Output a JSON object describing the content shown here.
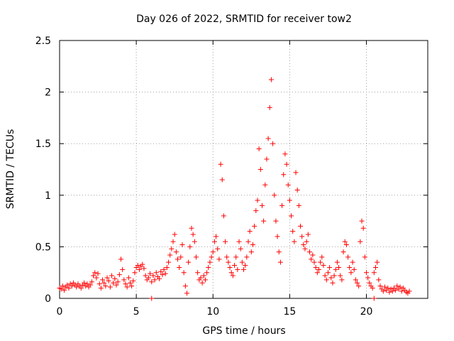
{
  "chart_data": {
    "type": "scatter",
    "title": "Day 026 of 2022, SRMTID for receiver tow2",
    "xlabel": "GPS time / hours",
    "ylabel": "SRMTID / TECUs",
    "xlim": [
      0,
      24
    ],
    "ylim": [
      0,
      2.5
    ],
    "xticks": [
      0,
      5,
      10,
      15,
      20
    ],
    "yticks": [
      0,
      0.5,
      1,
      1.5,
      2,
      2.5
    ],
    "xtick_labels": [
      "0",
      "5",
      "10",
      "15",
      "20"
    ],
    "ytick_labels": [
      "0",
      "0.5",
      "1",
      "1.5",
      "2",
      "2.5"
    ],
    "grid": true,
    "marker": "+",
    "color": "#ff0000",
    "series": [
      {
        "name": "tow2",
        "points": [
          [
            0.0,
            0.1
          ],
          [
            0.1,
            0.09
          ],
          [
            0.2,
            0.12
          ],
          [
            0.3,
            0.08
          ],
          [
            0.4,
            0.11
          ],
          [
            0.5,
            0.13
          ],
          [
            0.6,
            0.1
          ],
          [
            0.7,
            0.14
          ],
          [
            0.8,
            0.12
          ],
          [
            0.9,
            0.15
          ],
          [
            1.0,
            0.13
          ],
          [
            1.1,
            0.11
          ],
          [
            1.2,
            0.14
          ],
          [
            1.3,
            0.12
          ],
          [
            1.4,
            0.1
          ],
          [
            1.5,
            0.13
          ],
          [
            1.6,
            0.15
          ],
          [
            1.7,
            0.12
          ],
          [
            1.8,
            0.14
          ],
          [
            1.9,
            0.11
          ],
          [
            2.0,
            0.13
          ],
          [
            2.1,
            0.16
          ],
          [
            2.2,
            0.22
          ],
          [
            2.3,
            0.25
          ],
          [
            2.4,
            0.2
          ],
          [
            2.5,
            0.24
          ],
          [
            2.6,
            0.14
          ],
          [
            2.7,
            0.1
          ],
          [
            2.8,
            0.18
          ],
          [
            2.9,
            0.15
          ],
          [
            3.0,
            0.12
          ],
          [
            3.1,
            0.2
          ],
          [
            3.2,
            0.17
          ],
          [
            3.3,
            0.11
          ],
          [
            3.4,
            0.22
          ],
          [
            3.5,
            0.15
          ],
          [
            3.6,
            0.19
          ],
          [
            3.7,
            0.13
          ],
          [
            3.8,
            0.16
          ],
          [
            3.9,
            0.23
          ],
          [
            4.0,
            0.38
          ],
          [
            4.1,
            0.28
          ],
          [
            4.2,
            0.18
          ],
          [
            4.3,
            0.14
          ],
          [
            4.4,
            0.11
          ],
          [
            4.5,
            0.2
          ],
          [
            4.6,
            0.15
          ],
          [
            4.7,
            0.12
          ],
          [
            4.8,
            0.17
          ],
          [
            4.9,
            0.25
          ],
          [
            5.0,
            0.3
          ],
          [
            5.1,
            0.32
          ],
          [
            5.2,
            0.28
          ],
          [
            5.3,
            0.31
          ],
          [
            5.4,
            0.33
          ],
          [
            5.5,
            0.29
          ],
          [
            5.6,
            0.22
          ],
          [
            5.7,
            0.18
          ],
          [
            5.8,
            0.2
          ],
          [
            5.9,
            0.24
          ],
          [
            6.0,
            0.16
          ],
          [
            6.1,
            0.22
          ],
          [
            6.2,
            0.18
          ],
          [
            6.3,
            0.25
          ],
          [
            6.4,
            0.21
          ],
          [
            6.5,
            0.19
          ],
          [
            6.6,
            0.26
          ],
          [
            6.7,
            0.23
          ],
          [
            6.8,
            0.28
          ],
          [
            6.9,
            0.24
          ],
          [
            7.0,
            0.3
          ],
          [
            7.1,
            0.35
          ],
          [
            7.2,
            0.42
          ],
          [
            7.3,
            0.48
          ],
          [
            7.4,
            0.55
          ],
          [
            7.5,
            0.62
          ],
          [
            7.6,
            0.45
          ],
          [
            7.7,
            0.38
          ],
          [
            7.8,
            0.3
          ],
          [
            7.9,
            0.4
          ],
          [
            8.0,
            0.52
          ],
          [
            8.1,
            0.25
          ],
          [
            8.2,
            0.12
          ],
          [
            8.3,
            0.05
          ],
          [
            8.4,
            0.35
          ],
          [
            8.5,
            0.5
          ],
          [
            8.6,
            0.68
          ],
          [
            8.7,
            0.62
          ],
          [
            8.8,
            0.55
          ],
          [
            8.9,
            0.4
          ],
          [
            9.0,
            0.25
          ],
          [
            9.1,
            0.18
          ],
          [
            9.2,
            0.2
          ],
          [
            9.3,
            0.15
          ],
          [
            9.4,
            0.22
          ],
          [
            9.5,
            0.18
          ],
          [
            9.6,
            0.25
          ],
          [
            9.7,
            0.3
          ],
          [
            9.8,
            0.35
          ],
          [
            9.9,
            0.4
          ],
          [
            10.0,
            0.45
          ],
          [
            10.1,
            0.55
          ],
          [
            10.2,
            0.6
          ],
          [
            10.3,
            0.48
          ],
          [
            10.4,
            0.38
          ],
          [
            10.5,
            1.3
          ],
          [
            10.6,
            1.15
          ],
          [
            10.7,
            0.8
          ],
          [
            10.8,
            0.55
          ],
          [
            10.9,
            0.4
          ],
          [
            11.0,
            0.35
          ],
          [
            11.1,
            0.3
          ],
          [
            11.2,
            0.25
          ],
          [
            11.3,
            0.22
          ],
          [
            11.4,
            0.32
          ],
          [
            11.5,
            0.4
          ],
          [
            11.6,
            0.28
          ],
          [
            11.7,
            0.55
          ],
          [
            11.8,
            0.48
          ],
          [
            11.9,
            0.35
          ],
          [
            12.0,
            0.28
          ],
          [
            12.1,
            0.32
          ],
          [
            12.2,
            0.4
          ],
          [
            12.3,
            0.55
          ],
          [
            12.4,
            0.65
          ],
          [
            12.5,
            0.45
          ],
          [
            12.6,
            0.52
          ],
          [
            12.7,
            0.7
          ],
          [
            12.8,
            0.85
          ],
          [
            12.9,
            0.95
          ],
          [
            13.0,
            1.45
          ],
          [
            13.1,
            1.25
          ],
          [
            13.2,
            0.9
          ],
          [
            13.3,
            0.75
          ],
          [
            13.4,
            1.1
          ],
          [
            13.5,
            1.35
          ],
          [
            13.6,
            1.55
          ],
          [
            13.7,
            1.85
          ],
          [
            13.8,
            2.12
          ],
          [
            13.9,
            1.5
          ],
          [
            14.0,
            1.0
          ],
          [
            14.1,
            0.75
          ],
          [
            14.2,
            0.6
          ],
          [
            14.3,
            0.45
          ],
          [
            14.4,
            0.35
          ],
          [
            14.5,
            0.9
          ],
          [
            14.6,
            1.2
          ],
          [
            14.7,
            1.4
          ],
          [
            14.8,
            1.3
          ],
          [
            14.9,
            1.1
          ],
          [
            15.0,
            0.95
          ],
          [
            15.1,
            0.8
          ],
          [
            15.2,
            0.65
          ],
          [
            15.3,
            0.55
          ],
          [
            15.4,
            1.22
          ],
          [
            15.5,
            1.05
          ],
          [
            15.6,
            0.9
          ],
          [
            15.7,
            0.7
          ],
          [
            15.8,
            0.6
          ],
          [
            15.9,
            0.52
          ],
          [
            16.0,
            0.48
          ],
          [
            16.1,
            0.55
          ],
          [
            16.2,
            0.62
          ],
          [
            16.3,
            0.45
          ],
          [
            16.4,
            0.38
          ],
          [
            16.5,
            0.42
          ],
          [
            16.6,
            0.35
          ],
          [
            16.7,
            0.3
          ],
          [
            16.8,
            0.25
          ],
          [
            16.9,
            0.28
          ],
          [
            17.0,
            0.35
          ],
          [
            17.1,
            0.4
          ],
          [
            17.2,
            0.32
          ],
          [
            17.3,
            0.22
          ],
          [
            17.4,
            0.18
          ],
          [
            17.5,
            0.25
          ],
          [
            17.6,
            0.3
          ],
          [
            17.7,
            0.2
          ],
          [
            17.8,
            0.15
          ],
          [
            17.9,
            0.22
          ],
          [
            18.0,
            0.28
          ],
          [
            18.1,
            0.35
          ],
          [
            18.2,
            0.3
          ],
          [
            18.3,
            0.22
          ],
          [
            18.4,
            0.18
          ],
          [
            18.5,
            0.45
          ],
          [
            18.6,
            0.55
          ],
          [
            18.7,
            0.52
          ],
          [
            18.8,
            0.4
          ],
          [
            18.9,
            0.3
          ],
          [
            19.0,
            0.25
          ],
          [
            19.1,
            0.35
          ],
          [
            19.2,
            0.28
          ],
          [
            19.3,
            0.18
          ],
          [
            19.4,
            0.15
          ],
          [
            19.5,
            0.12
          ],
          [
            19.6,
            0.55
          ],
          [
            19.7,
            0.75
          ],
          [
            19.8,
            0.68
          ],
          [
            19.9,
            0.4
          ],
          [
            20.0,
            0.25
          ],
          [
            20.1,
            0.2
          ],
          [
            20.2,
            0.15
          ],
          [
            20.3,
            0.12
          ],
          [
            20.4,
            0.1
          ],
          [
            20.5,
            0.25
          ],
          [
            20.6,
            0.3
          ],
          [
            20.7,
            0.35
          ],
          [
            20.8,
            0.18
          ],
          [
            20.9,
            0.12
          ],
          [
            21.0,
            0.09
          ],
          [
            21.1,
            0.07
          ],
          [
            21.2,
            0.11
          ],
          [
            21.3,
            0.08
          ],
          [
            21.4,
            0.1
          ],
          [
            21.5,
            0.06
          ],
          [
            21.6,
            0.09
          ],
          [
            21.7,
            0.07
          ],
          [
            21.8,
            0.1
          ],
          [
            21.9,
            0.08
          ],
          [
            22.0,
            0.12
          ],
          [
            22.1,
            0.09
          ],
          [
            22.2,
            0.11
          ],
          [
            22.3,
            0.07
          ],
          [
            22.4,
            0.1
          ],
          [
            22.5,
            0.08
          ],
          [
            22.6,
            0.06
          ],
          [
            22.7,
            0.05
          ],
          [
            22.8,
            0.07
          ],
          [
            6.0,
            0.0
          ],
          [
            20.5,
            0.0
          ]
        ]
      }
    ]
  }
}
